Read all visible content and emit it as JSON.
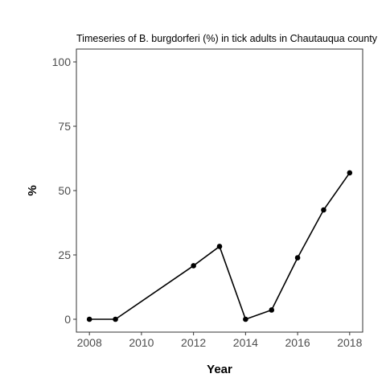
{
  "chart_data": {
    "type": "line",
    "title": "Timeseries of B. burgdorferi (%) in tick adults in Chautauqua county",
    "xlabel": "Year",
    "ylabel": "%",
    "xlim": [
      2007.5,
      2018.5
    ],
    "ylim": [
      -5,
      105
    ],
    "x_ticks": [
      2008,
      2010,
      2012,
      2014,
      2016,
      2018
    ],
    "x_tick_labels": [
      "2008",
      "2010",
      "2012",
      "2014",
      "2016",
      "2018"
    ],
    "y_ticks": [
      0,
      25,
      50,
      75,
      100
    ],
    "y_tick_labels": [
      "0",
      "25",
      "50",
      "75",
      "100"
    ],
    "grid": false,
    "legend": "none",
    "series": [
      {
        "x": [
          2008,
          2009,
          2012,
          2013,
          2014,
          2015,
          2016,
          2017,
          2018
        ],
        "values": [
          0,
          0,
          20.8,
          28.3,
          0,
          3.6,
          23.9,
          42.5,
          56.9
        ],
        "color": "#000000"
      }
    ]
  }
}
